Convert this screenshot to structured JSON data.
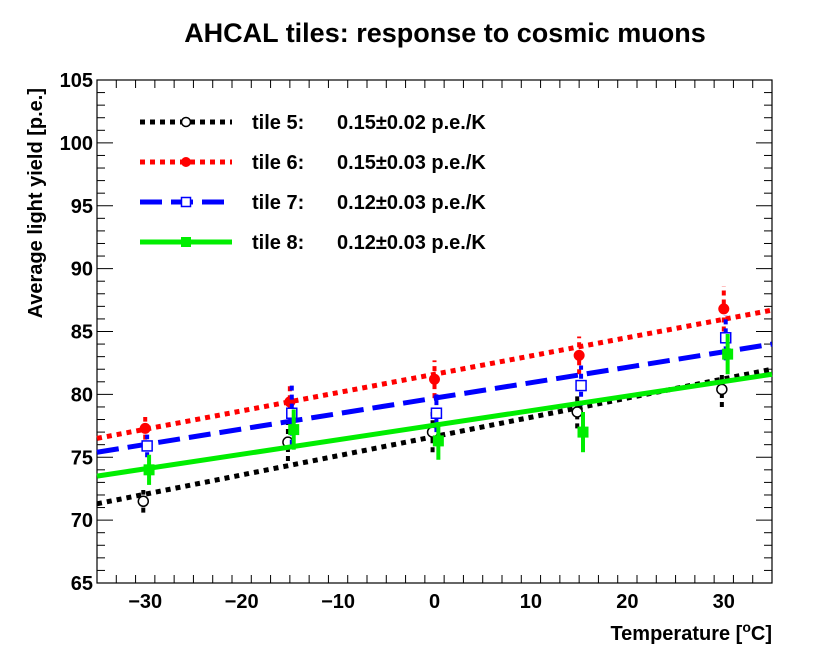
{
  "chart_data": {
    "type": "scatter",
    "title": "AHCAL tiles: response to cosmic muons",
    "xlabel": "Temperature [°C]",
    "ylabel": "Average light yield [p.e.]",
    "xlim": [
      -35,
      35
    ],
    "ylim": [
      65,
      105
    ],
    "x_ticks": [
      -30,
      -20,
      -10,
      0,
      10,
      20,
      30
    ],
    "y_ticks": [
      65,
      70,
      75,
      80,
      85,
      90,
      95,
      100,
      105
    ],
    "grid": false,
    "legend_position": "top-left",
    "series": [
      {
        "name": "tile 5:",
        "fit_text": "0.15±0.02 p.e./K",
        "color": "#000000",
        "line_style": "dotted",
        "marker": "open-circle",
        "points": [
          {
            "x": -30.2,
            "y": 71.5,
            "err": 0.9
          },
          {
            "x": -15.2,
            "y": 76.2,
            "err": 1.5
          },
          {
            "x": -0.2,
            "y": 77.0,
            "err": 1.6
          },
          {
            "x": 14.8,
            "y": 78.6,
            "err": 1.3
          },
          {
            "x": 29.8,
            "y": 80.4,
            "err": 1.4
          }
        ],
        "fit_line": {
          "x": [
            -35,
            35
          ],
          "y": [
            71.3,
            82.0
          ]
        }
      },
      {
        "name": "tile 6:",
        "fit_text": "0.15±0.03 p.e./K",
        "color": "#ff0000",
        "line_style": "dotted",
        "marker": "filled-circle",
        "points": [
          {
            "x": -30.0,
            "y": 77.3,
            "err": 0.9
          },
          {
            "x": -15.0,
            "y": 79.4,
            "err": 1.3
          },
          {
            "x": 0.0,
            "y": 81.2,
            "err": 1.5
          },
          {
            "x": 15.0,
            "y": 83.1,
            "err": 1.5
          },
          {
            "x": 30.0,
            "y": 86.8,
            "err": 1.8
          }
        ],
        "fit_line": {
          "x": [
            -35,
            35
          ],
          "y": [
            76.5,
            86.7
          ]
        }
      },
      {
        "name": "tile 7:",
        "fit_text": "0.12±0.03 p.e./K",
        "color": "#0000ff",
        "line_style": "dashed",
        "marker": "open-square",
        "points": [
          {
            "x": -29.8,
            "y": 75.9,
            "err": 0.9
          },
          {
            "x": -14.8,
            "y": 78.5,
            "err": 2.5
          },
          {
            "x": 0.2,
            "y": 78.5,
            "err": 1.5
          },
          {
            "x": 15.2,
            "y": 80.7,
            "err": 1.6
          },
          {
            "x": 30.2,
            "y": 84.5,
            "err": 1.8
          }
        ],
        "fit_line": {
          "x": [
            -35,
            35
          ],
          "y": [
            75.4,
            84.0
          ]
        }
      },
      {
        "name": "tile 8:",
        "fit_text": "0.12±0.03 p.e./K",
        "color": "#00ee00",
        "line_style": "solid",
        "marker": "filled-square",
        "points": [
          {
            "x": -29.6,
            "y": 74.0,
            "err": 1.2
          },
          {
            "x": -14.6,
            "y": 77.2,
            "err": 1.6
          },
          {
            "x": 0.4,
            "y": 76.3,
            "err": 1.5
          },
          {
            "x": 15.4,
            "y": 77.0,
            "err": 1.6
          },
          {
            "x": 30.4,
            "y": 83.2,
            "err": 1.6
          }
        ],
        "fit_line": {
          "x": [
            -35,
            35
          ],
          "y": [
            73.5,
            81.6
          ]
        }
      }
    ]
  }
}
